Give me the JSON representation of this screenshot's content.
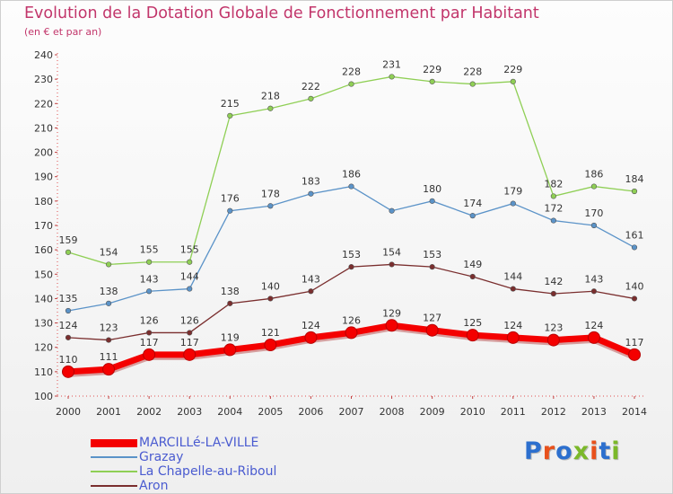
{
  "title": "Evolution de la Dotation Globale de Fonctionnement par Habitant",
  "subtitle": "(en € et par an)",
  "brand": {
    "text": "Proxiti",
    "letter_colors": [
      "#2c6fce",
      "#e8511c",
      "#2c6fce",
      "#7bb82a",
      "#e8511c",
      "#2c6fce",
      "#7bb82a"
    ]
  },
  "chart_data": {
    "type": "line",
    "x": [
      2000,
      2001,
      2002,
      2003,
      2004,
      2005,
      2006,
      2007,
      2008,
      2009,
      2010,
      2011,
      2012,
      2013,
      2014
    ],
    "ylim": [
      100,
      240
    ],
    "yticks": [
      100,
      110,
      120,
      130,
      140,
      150,
      160,
      170,
      180,
      190,
      200,
      210,
      220,
      230,
      240
    ],
    "grid": false,
    "legend_position": "bottom-left",
    "series": [
      {
        "name": "MARCILLé-LA-VILLE",
        "color": "#f40000",
        "emphasis": true,
        "values": [
          110,
          111,
          117,
          117,
          119,
          121,
          124,
          126,
          129,
          127,
          125,
          124,
          123,
          124,
          117
        ],
        "labels": [
          "110",
          "111",
          "117",
          "117",
          "119",
          "121",
          "124",
          "126",
          "129",
          "127",
          "125",
          "124",
          "123",
          "124",
          "117"
        ]
      },
      {
        "name": "Grazay",
        "color": "#5b93c8",
        "emphasis": false,
        "values": [
          135,
          138,
          143,
          144,
          176,
          178,
          183,
          186,
          176,
          180,
          174,
          179,
          172,
          170,
          161
        ],
        "labels": [
          "135",
          "138",
          "143",
          "144",
          "176",
          "178",
          "183",
          "186",
          "",
          "180",
          "174",
          "179",
          "172",
          "170",
          "161"
        ]
      },
      {
        "name": "La Chapelle-au-Riboul",
        "color": "#8fcf55",
        "emphasis": false,
        "values": [
          159,
          154,
          155,
          155,
          215,
          218,
          222,
          228,
          231,
          229,
          228,
          229,
          182,
          186,
          184
        ],
        "labels": [
          "159",
          "154",
          "155",
          "155",
          "215",
          "218",
          "222",
          "228",
          "231",
          "229",
          "228",
          "229",
          "182",
          "186",
          "184"
        ]
      },
      {
        "name": "Aron",
        "color": "#7a2e2e",
        "emphasis": false,
        "values": [
          124,
          123,
          126,
          126,
          138,
          140,
          143,
          153,
          154,
          153,
          149,
          144,
          142,
          143,
          140
        ],
        "labels": [
          "124",
          "123",
          "126",
          "126",
          "138",
          "140",
          "143",
          "153",
          "154",
          "153",
          "149",
          "144",
          "142",
          "143",
          "140"
        ]
      }
    ]
  }
}
